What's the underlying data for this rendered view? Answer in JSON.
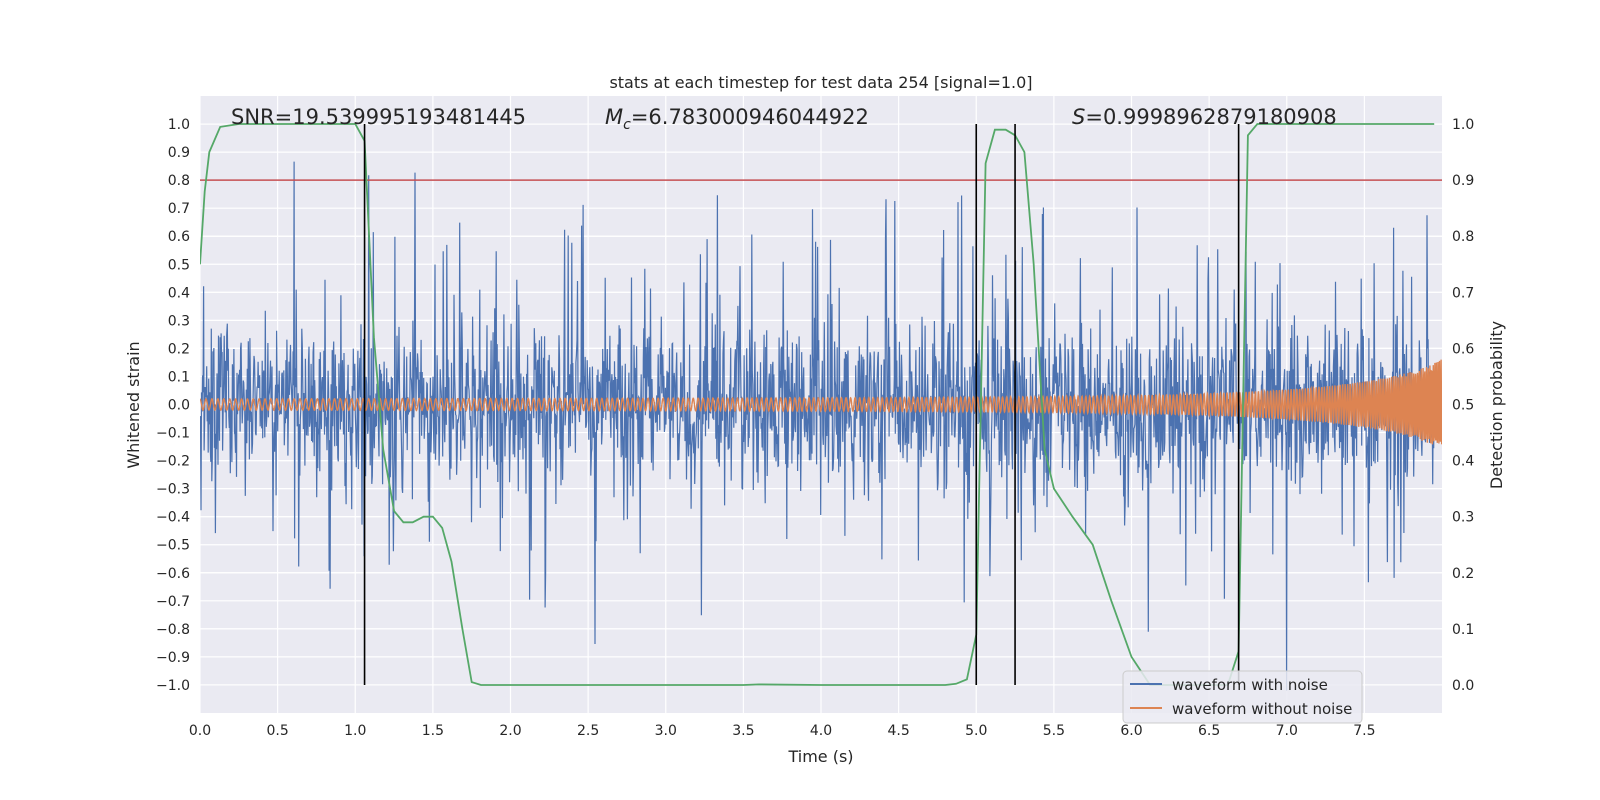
{
  "chart_data": {
    "type": "line",
    "title": "stats at each timestep for test data 254 [signal=1.0]",
    "xlabel": "Time (s)",
    "ylabel_left": "Whitened strain",
    "ylabel_right": "Detection probability",
    "xlim": [
      0.0,
      8.0
    ],
    "ylim_left": [
      -1.1,
      1.1
    ],
    "ylim_right": [
      -0.05,
      1.05
    ],
    "x_ticks": [
      0.0,
      0.5,
      1.0,
      1.5,
      2.0,
      2.5,
      3.0,
      3.5,
      4.0,
      4.5,
      5.0,
      5.5,
      6.0,
      6.5,
      7.0,
      7.5
    ],
    "x_tick_labels": [
      "0.0",
      "0.5",
      "1.0",
      "1.5",
      "2.0",
      "2.5",
      "3.0",
      "3.5",
      "4.0",
      "4.5",
      "5.0",
      "5.5",
      "6.0",
      "6.5",
      "7.0",
      "7.5"
    ],
    "y_left_ticks": [
      1.0,
      0.9,
      0.8,
      0.7,
      0.6,
      0.5,
      0.4,
      0.3,
      0.2,
      0.1,
      0.0,
      -0.1,
      -0.2,
      -0.3,
      -0.4,
      -0.5,
      -0.6,
      -0.7,
      -0.8,
      -0.9,
      -1.0
    ],
    "y_left_tick_labels": [
      "1.0",
      "0.9",
      "0.8",
      "0.7",
      "0.6",
      "0.5",
      "0.4",
      "0.3",
      "0.2",
      "0.1",
      "0.0",
      "−0.1",
      "−0.2",
      "−0.3",
      "−0.4",
      "−0.5",
      "−0.6",
      "−0.7",
      "−0.8",
      "−0.9",
      "−1.0"
    ],
    "y_right_ticks": [
      1.0,
      0.9,
      0.8,
      0.7,
      0.6,
      0.5,
      0.4,
      0.3,
      0.2,
      0.1,
      0.0
    ],
    "y_right_tick_labels": [
      "1.0",
      "0.9",
      "0.8",
      "0.7",
      "0.6",
      "0.5",
      "0.4",
      "0.3",
      "0.2",
      "0.1",
      "0.0"
    ],
    "grid": true,
    "annotations": {
      "snr": "SNR=19.539995193481445",
      "mc_symbol": "M",
      "mc_sub": "c",
      "mc_value": "=6.783000946044922",
      "s_symbol": "S",
      "s_value": "=0.9998962879180908"
    },
    "threshold_line": {
      "value": 0.9,
      "axis": "right",
      "color": "#c44e52"
    },
    "vertical_lines": [
      1.06,
      5.0,
      5.25,
      6.69
    ],
    "series": [
      {
        "name": "waveform with noise",
        "color": "#4c72b0",
        "axis": "left",
        "kind": "noise"
      },
      {
        "name": "waveform without noise",
        "color": "#dd8452",
        "axis": "left",
        "kind": "chirp"
      },
      {
        "color": "#55a868",
        "axis": "right",
        "x": [
          0.0,
          0.03,
          0.06,
          0.13,
          0.25,
          0.5,
          0.75,
          1.0,
          1.06,
          1.12,
          1.18,
          1.25,
          1.31,
          1.37,
          1.44,
          1.5,
          1.56,
          1.62,
          1.69,
          1.75,
          1.81,
          2.0,
          2.5,
          3.0,
          3.5,
          3.6,
          4.0,
          4.5,
          4.8,
          4.87,
          4.94,
          5.0,
          5.06,
          5.12,
          5.19,
          5.25,
          5.31,
          5.37,
          5.44,
          5.5,
          5.62,
          5.75,
          5.87,
          6.0,
          6.12,
          6.25,
          6.37,
          6.5,
          6.62,
          6.69,
          6.75,
          6.81,
          7.0,
          7.5,
          7.95
        ],
        "y": [
          0.75,
          0.88,
          0.95,
          0.995,
          1.0,
          1.0,
          1.0,
          1.0,
          0.97,
          0.62,
          0.42,
          0.31,
          0.29,
          0.29,
          0.3,
          0.3,
          0.28,
          0.22,
          0.1,
          0.005,
          0.0,
          0.0,
          0.0,
          0.0,
          0.0,
          0.001,
          0.0,
          0.0,
          0.0,
          0.002,
          0.01,
          0.09,
          0.93,
          0.99,
          0.99,
          0.98,
          0.95,
          0.75,
          0.42,
          0.35,
          0.3,
          0.25,
          0.15,
          0.05,
          0.0,
          0.0,
          0.0,
          0.0,
          0.0,
          0.06,
          0.98,
          1.0,
          1.0,
          1.0,
          1.0
        ]
      }
    ],
    "legend_position": "lower-right"
  }
}
